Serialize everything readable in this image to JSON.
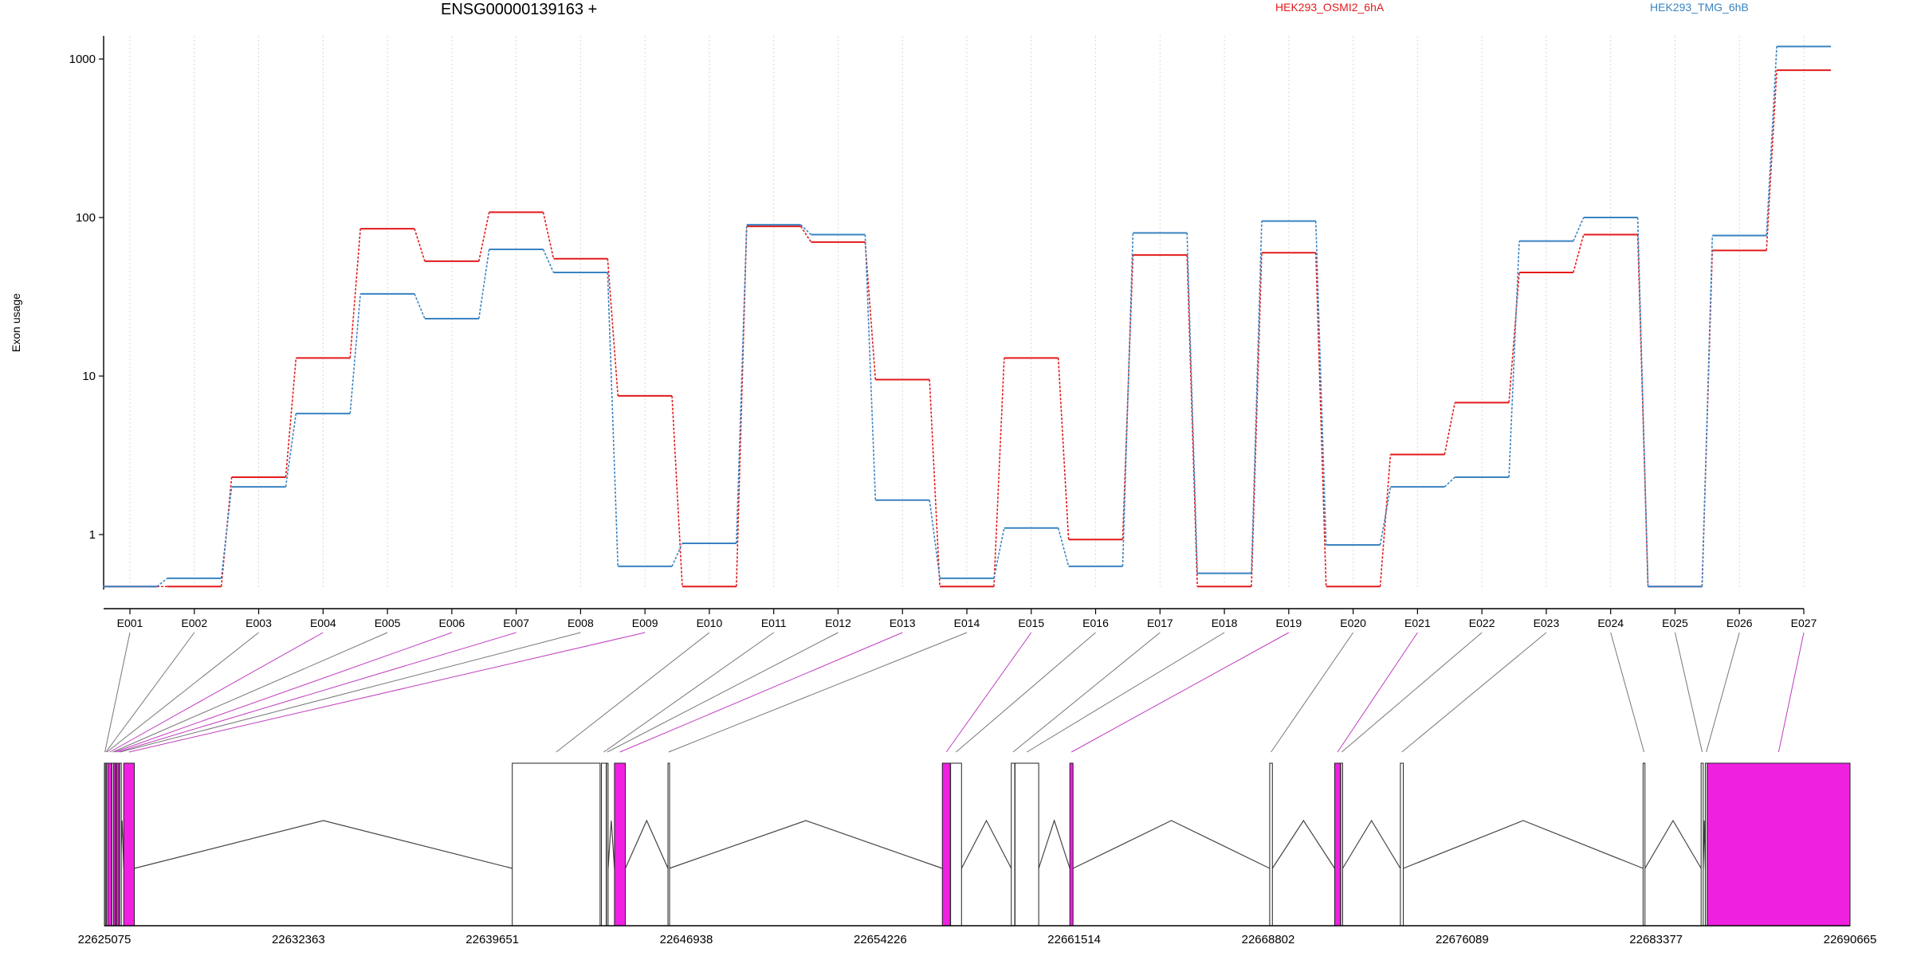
{
  "chart_data": {
    "type": "line",
    "title": "ENSG00000139163 +",
    "xlabel": "",
    "ylabel": "Exon usage",
    "yscale": "log",
    "ylim": [
      0.45,
      1400
    ],
    "y_ticks": [
      1,
      10,
      100,
      1000
    ],
    "y_tick_labels": [
      "1",
      "10",
      "100",
      "1000"
    ],
    "grid": "vertical dotted lines at exon ticks",
    "legend_position": "top",
    "categories": [
      "E001",
      "E002",
      "E003",
      "E004",
      "E005",
      "E006",
      "E007",
      "E008",
      "E009",
      "E010",
      "E011",
      "E012",
      "E013",
      "E014",
      "E015",
      "E016",
      "E017",
      "E018",
      "E019",
      "E020",
      "E021",
      "E022",
      "E023",
      "E024",
      "E025",
      "E026",
      "E027"
    ],
    "series": [
      {
        "name": "HEK293_OSMI2_6hA",
        "color": "#e31a1c",
        "values": [
          0.47,
          0.47,
          2.3,
          13,
          85,
          53,
          108,
          55,
          7.5,
          0.47,
          88,
          70,
          9.5,
          0.47,
          13,
          0.93,
          58,
          0.47,
          60,
          0.47,
          3.2,
          6.8,
          45,
          78,
          0.47,
          62,
          850
        ]
      },
      {
        "name": "HEK293_TMG_6hB",
        "color": "#3a83c1",
        "values": [
          0.47,
          0.53,
          2.0,
          5.8,
          33,
          23,
          63,
          45,
          0.63,
          0.88,
          90,
          78,
          1.65,
          0.53,
          1.1,
          0.63,
          80,
          0.57,
          95,
          0.86,
          2.0,
          2.3,
          71,
          100,
          0.47,
          77,
          1200
        ]
      }
    ],
    "gene_model": {
      "start_coordinate": 22625075,
      "end_coordinate": 22690665,
      "axis_tick_labels": [
        "22625075",
        "22632363",
        "22639651",
        "22646938",
        "22654226",
        "22661514",
        "22668802",
        "22676089",
        "22683377",
        "22690665"
      ],
      "exons": [
        {
          "id": "E001",
          "start": 22625075,
          "end": 22625110,
          "highlighted": false
        },
        {
          "id": "E002",
          "start": 22625112,
          "end": 22625150,
          "highlighted": false
        },
        {
          "id": "E003",
          "start": 22625152,
          "end": 22625185,
          "highlighted": false
        },
        {
          "id": "E004",
          "start": 22625200,
          "end": 22625350,
          "highlighted": true
        },
        {
          "id": "E005",
          "start": 22625360,
          "end": 22625420,
          "highlighted": false
        },
        {
          "id": "E006",
          "start": 22625425,
          "end": 22625500,
          "highlighted": true
        },
        {
          "id": "E007",
          "start": 22625520,
          "end": 22625620,
          "highlighted": true
        },
        {
          "id": "E008",
          "start": 22625650,
          "end": 22625680,
          "highlighted": false
        },
        {
          "id": "E009",
          "start": 22625800,
          "end": 22626200,
          "highlighted": true
        },
        {
          "id": "E010",
          "start": 22640400,
          "end": 22643700,
          "highlighted": false
        },
        {
          "id": "E011",
          "start": 22643750,
          "end": 22643930,
          "highlighted": false
        },
        {
          "id": "E012",
          "start": 22643940,
          "end": 22644000,
          "highlighted": false
        },
        {
          "id": "E013",
          "start": 22644240,
          "end": 22644650,
          "highlighted": true
        },
        {
          "id": "E014",
          "start": 22646250,
          "end": 22646300,
          "highlighted": false
        },
        {
          "id": "E015",
          "start": 22656560,
          "end": 22656860,
          "highlighted": true
        },
        {
          "id": "E016",
          "start": 22656870,
          "end": 22657280,
          "highlighted": false
        },
        {
          "id": "E017",
          "start": 22659150,
          "end": 22659280,
          "highlighted": false
        },
        {
          "id": "E018",
          "start": 22659290,
          "end": 22660180,
          "highlighted": false
        },
        {
          "id": "E019",
          "start": 22661350,
          "end": 22661470,
          "highlighted": true
        },
        {
          "id": "E020",
          "start": 22668860,
          "end": 22668960,
          "highlighted": false
        },
        {
          "id": "E021",
          "start": 22671300,
          "end": 22671520,
          "highlighted": true
        },
        {
          "id": "E022",
          "start": 22671530,
          "end": 22671600,
          "highlighted": false
        },
        {
          "id": "E023",
          "start": 22673770,
          "end": 22673880,
          "highlighted": false
        },
        {
          "id": "E024",
          "start": 22682890,
          "end": 22682960,
          "highlighted": false
        },
        {
          "id": "E025",
          "start": 22685070,
          "end": 22685150,
          "highlighted": false
        },
        {
          "id": "E026",
          "start": 22685230,
          "end": 22685300,
          "highlighted": false
        },
        {
          "id": "E027",
          "start": 22685300,
          "end": 22690665,
          "highlighted": true
        }
      ]
    }
  }
}
